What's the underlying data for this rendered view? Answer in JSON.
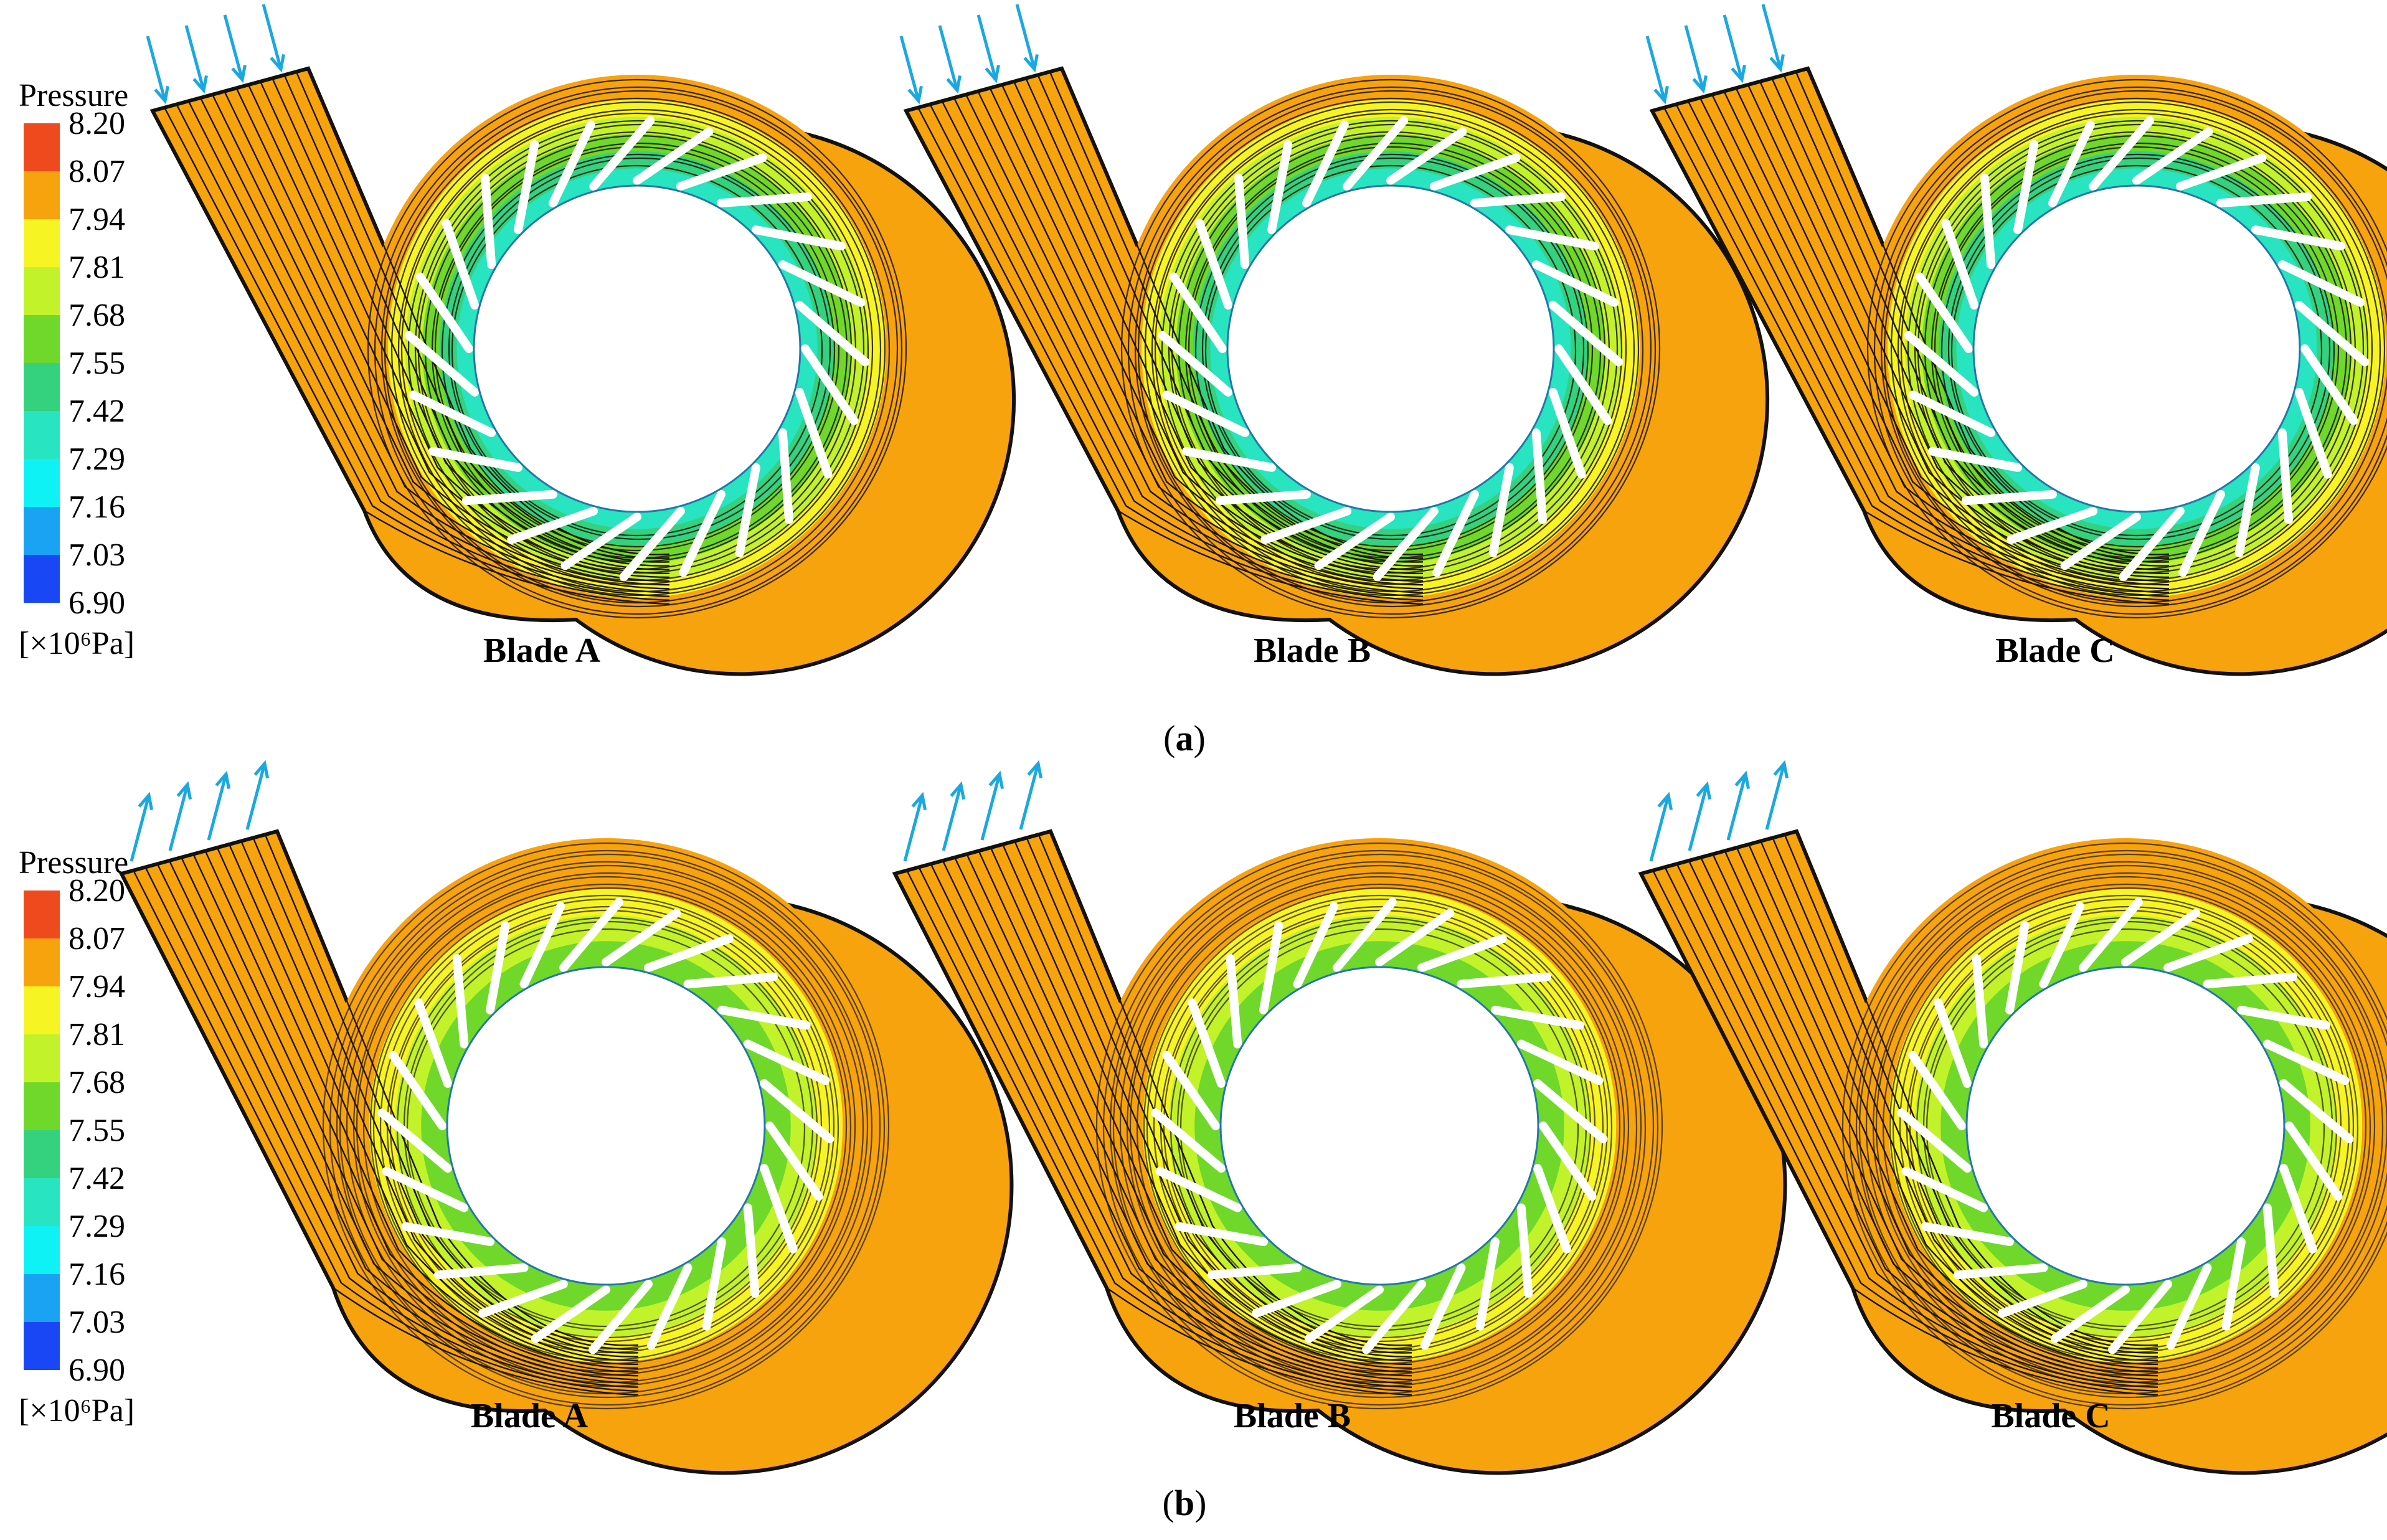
{
  "legend": {
    "title": "Pressure",
    "ticks": [
      "8.20",
      "8.07",
      "7.94",
      "7.81",
      "7.68",
      "7.55",
      "7.42",
      "7.29",
      "7.16",
      "7.03",
      "6.90"
    ],
    "unit": "[×10⁶Pa]",
    "colors": [
      "#ee4a1d",
      "#f6a30e",
      "#f7f424",
      "#c2f22a",
      "#6fd82a",
      "#34d17e",
      "#28e4c0",
      "#0ff2f5",
      "#1aa3f2",
      "#1a47f5"
    ]
  },
  "panels": [
    {
      "label_prefix": "(",
      "label": "a",
      "label_suffix": ")",
      "flow_direction": "inflow",
      "blades": [
        "Blade A",
        "Blade B",
        "Blade C"
      ]
    },
    {
      "label_prefix": "(",
      "label": "b",
      "label_suffix": ")",
      "flow_direction": "outflow",
      "blades": [
        "Blade A",
        "Blade B",
        "Blade C"
      ]
    }
  ],
  "colors": {
    "volute": "#f6a30e",
    "streamline": "#1a1208",
    "arrow": "#1ba8e0",
    "ring_a": [
      "#f7f424",
      "#c2f22a",
      "#6fd82a",
      "#34d17e",
      "#28e4c0"
    ],
    "ring_b": [
      "#f6a30e",
      "#f7f424",
      "#c2f22a",
      "#6fd82a"
    ]
  }
}
